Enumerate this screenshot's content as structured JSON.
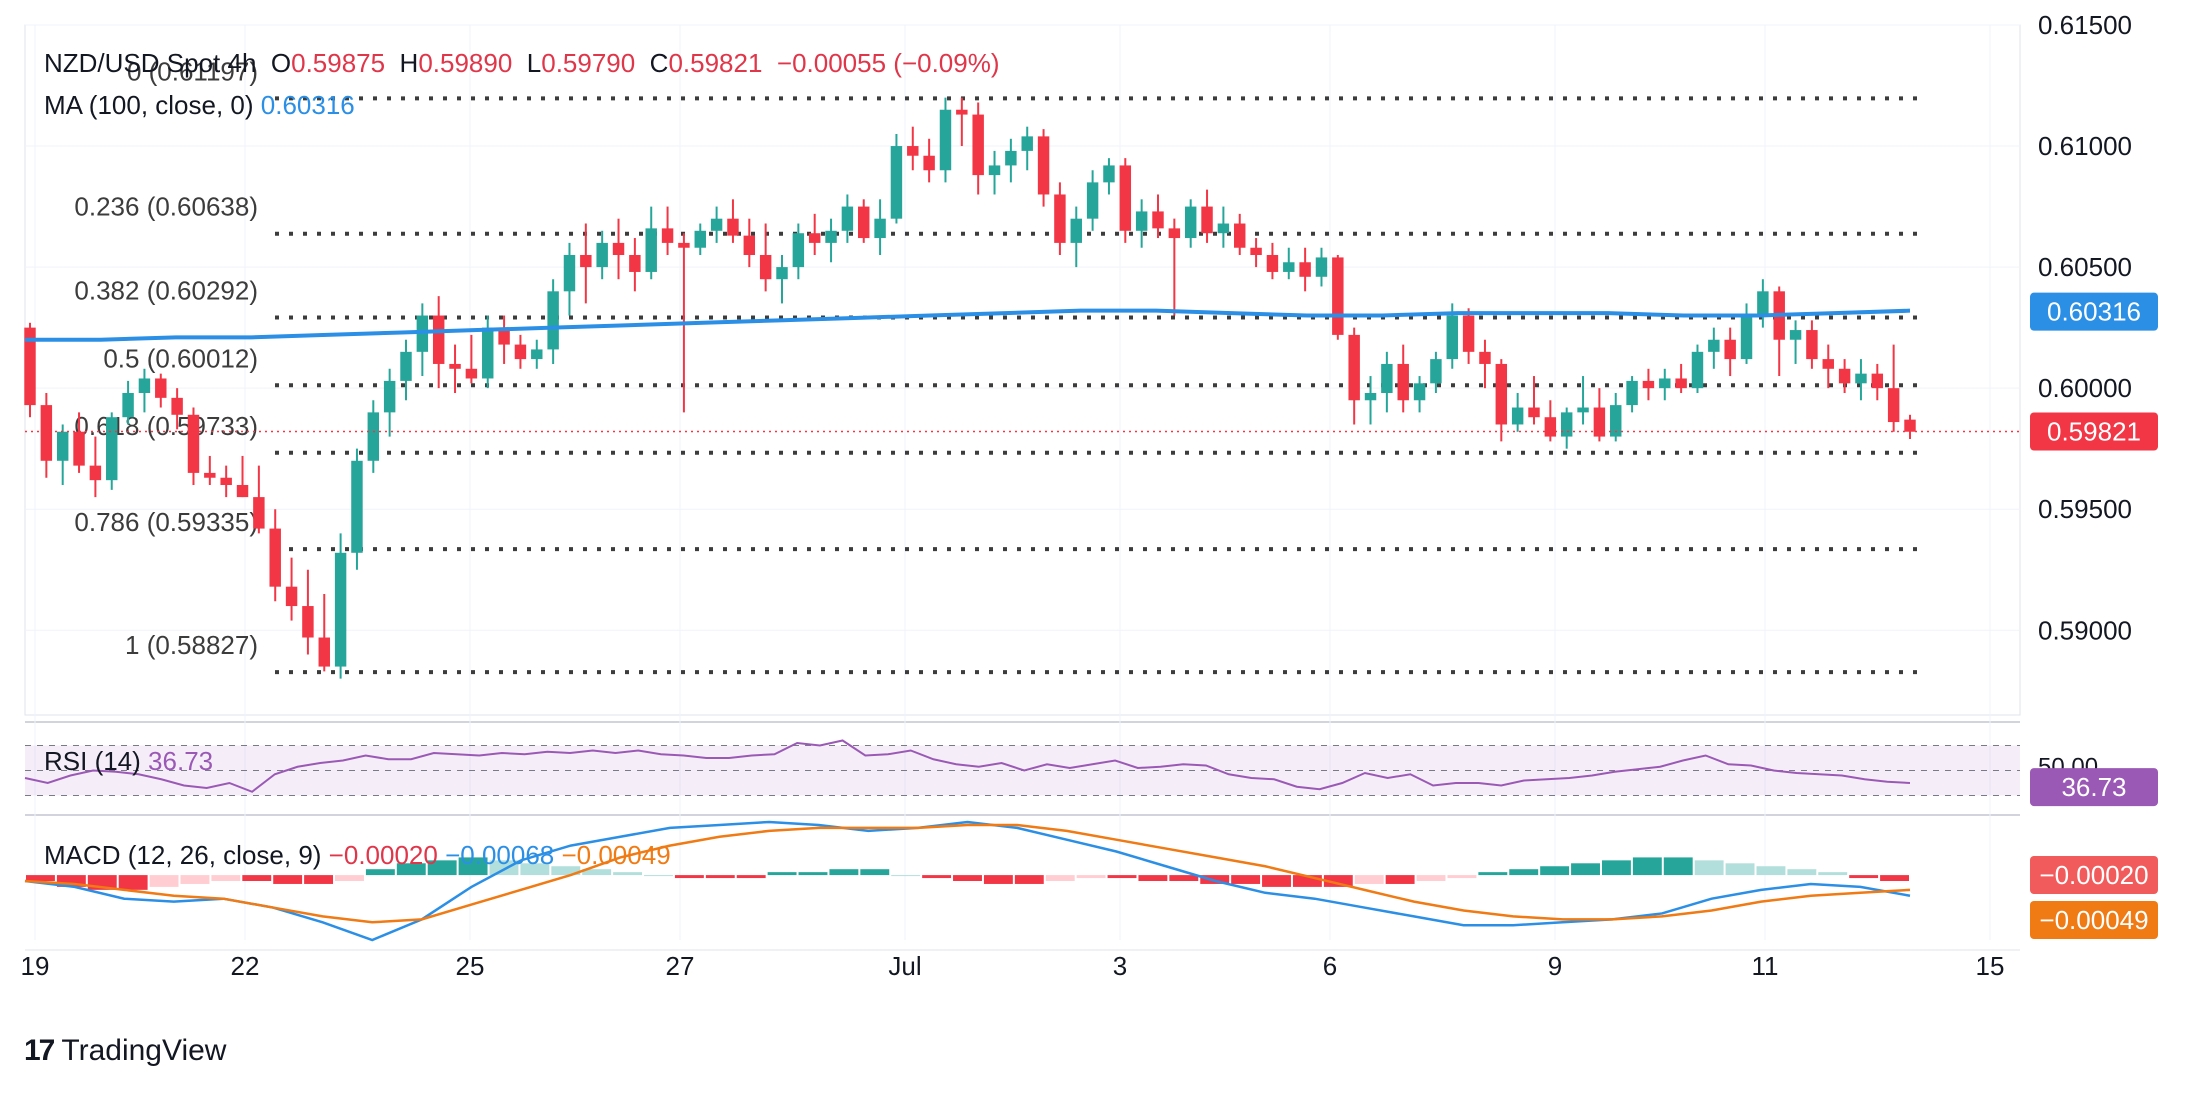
{
  "header": {
    "symbol": "NZD/USD Spot",
    "interval": "4h",
    "o_label": "O",
    "o_value": "0.59875",
    "h_label": "H",
    "h_value": "0.59890",
    "l_label": "L",
    "l_value": "0.59790",
    "c_label": "C",
    "c_value": "0.59821",
    "change": "−0.00055 (−0.09%)",
    "ma_label": "MA (100, close, 0)",
    "ma_value": "0.60316"
  },
  "rsi_header": {
    "label": "RSI (14)",
    "value": "36.73"
  },
  "macd_header": {
    "label": "MACD (12, 26, close, 9)",
    "hist": "−0.00020",
    "macd": "−0.00068",
    "signal": "−0.00049"
  },
  "branding": {
    "logo_text": "TradingView"
  },
  "colors": {
    "up": "#26a69a",
    "down": "#f23645",
    "ma": "#2b8fe6",
    "rsi": "#9b59b6",
    "macd_line": "#2b8fe6",
    "signal_line": "#f07a13",
    "hist_up_strong": "#26a69a",
    "hist_up_weak": "#b2dfdb",
    "hist_down_strong": "#f23645",
    "hist_down_weak": "#ffcdd2"
  },
  "chart_data": {
    "type": "candlestick",
    "y_range": [
      0.5865,
      0.615
    ],
    "y_ticks": [
      "0.59000",
      "0.59500",
      "0.60000",
      "0.60500",
      "0.61000",
      "0.61500"
    ],
    "x_ticks": [
      "19",
      "22",
      "25",
      "27",
      "Jul",
      "3",
      "6",
      "9",
      "11",
      "15"
    ],
    "last_price": "0.59821",
    "ma_last": "0.60316",
    "fibonacci": [
      {
        "label": "0 (0.61197)",
        "value": 0.61197
      },
      {
        "label": "0.236 (0.60638)",
        "value": 0.60638
      },
      {
        "label": "0.382 (0.60292)",
        "value": 0.60292
      },
      {
        "label": "0.5 (0.60012)",
        "value": 0.60012
      },
      {
        "label": "0.618 (0.59733)",
        "value": 0.59733
      },
      {
        "label": "0.786 (0.59335)",
        "value": 0.59335
      },
      {
        "label": "1 (0.58827)",
        "value": 0.58827
      }
    ],
    "candles": [
      [
        0.6025,
        0.6027,
        0.5988,
        0.5993
      ],
      [
        0.5993,
        0.5998,
        0.5963,
        0.597
      ],
      [
        0.597,
        0.5985,
        0.596,
        0.5982
      ],
      [
        0.5982,
        0.599,
        0.5965,
        0.5968
      ],
      [
        0.5968,
        0.598,
        0.5955,
        0.5962
      ],
      [
        0.5962,
        0.599,
        0.5958,
        0.5988
      ],
      [
        0.5988,
        0.6003,
        0.5985,
        0.5998
      ],
      [
        0.5998,
        0.6008,
        0.599,
        0.6004
      ],
      [
        0.6004,
        0.6006,
        0.5992,
        0.5996
      ],
      [
        0.5996,
        0.6,
        0.5983,
        0.5989
      ],
      [
        0.5989,
        0.5992,
        0.596,
        0.5965
      ],
      [
        0.5965,
        0.5972,
        0.596,
        0.5963
      ],
      [
        0.5963,
        0.5968,
        0.5955,
        0.596
      ],
      [
        0.596,
        0.5972,
        0.5955,
        0.5955
      ],
      [
        0.5955,
        0.5968,
        0.594,
        0.5942
      ],
      [
        0.5942,
        0.595,
        0.5912,
        0.5918
      ],
      [
        0.5918,
        0.593,
        0.5904,
        0.591
      ],
      [
        0.591,
        0.5925,
        0.589,
        0.5897
      ],
      [
        0.5897,
        0.5915,
        0.5883,
        0.5885
      ],
      [
        0.5885,
        0.594,
        0.588,
        0.5932
      ],
      [
        0.5932,
        0.5975,
        0.5925,
        0.597
      ],
      [
        0.597,
        0.5995,
        0.5965,
        0.599
      ],
      [
        0.599,
        0.6008,
        0.598,
        0.6003
      ],
      [
        0.6003,
        0.602,
        0.5995,
        0.6015
      ],
      [
        0.6015,
        0.6035,
        0.6005,
        0.603
      ],
      [
        0.603,
        0.6038,
        0.6,
        0.601
      ],
      [
        0.601,
        0.6018,
        0.5998,
        0.6008
      ],
      [
        0.6008,
        0.6022,
        0.6002,
        0.6004
      ],
      [
        0.6004,
        0.603,
        0.6,
        0.6025
      ],
      [
        0.6025,
        0.603,
        0.601,
        0.6018
      ],
      [
        0.6018,
        0.6022,
        0.6008,
        0.6012
      ],
      [
        0.6012,
        0.602,
        0.6008,
        0.6016
      ],
      [
        0.6016,
        0.6045,
        0.601,
        0.604
      ],
      [
        0.604,
        0.606,
        0.603,
        0.6055
      ],
      [
        0.6055,
        0.6068,
        0.6035,
        0.605
      ],
      [
        0.605,
        0.6065,
        0.6045,
        0.606
      ],
      [
        0.606,
        0.607,
        0.6045,
        0.6055
      ],
      [
        0.6055,
        0.6062,
        0.604,
        0.6048
      ],
      [
        0.6048,
        0.6075,
        0.6045,
        0.6066
      ],
      [
        0.6066,
        0.6075,
        0.6055,
        0.606
      ],
      [
        0.606,
        0.6064,
        0.599,
        0.6058
      ],
      [
        0.6058,
        0.6068,
        0.6055,
        0.6065
      ],
      [
        0.6065,
        0.6075,
        0.606,
        0.607
      ],
      [
        0.607,
        0.6078,
        0.606,
        0.6063
      ],
      [
        0.6063,
        0.607,
        0.605,
        0.6055
      ],
      [
        0.6055,
        0.6068,
        0.604,
        0.6045
      ],
      [
        0.6045,
        0.6055,
        0.6035,
        0.605
      ],
      [
        0.605,
        0.6068,
        0.6045,
        0.6064
      ],
      [
        0.6064,
        0.6072,
        0.6055,
        0.606
      ],
      [
        0.606,
        0.607,
        0.6052,
        0.6065
      ],
      [
        0.6065,
        0.608,
        0.606,
        0.6075
      ],
      [
        0.6075,
        0.6078,
        0.606,
        0.6062
      ],
      [
        0.6062,
        0.6078,
        0.6055,
        0.607
      ],
      [
        0.607,
        0.6105,
        0.6068,
        0.61
      ],
      [
        0.61,
        0.6108,
        0.609,
        0.6096
      ],
      [
        0.6096,
        0.6103,
        0.6085,
        0.609
      ],
      [
        0.609,
        0.612,
        0.6085,
        0.6115
      ],
      [
        0.6115,
        0.612,
        0.61,
        0.6113
      ],
      [
        0.6113,
        0.6118,
        0.608,
        0.6088
      ],
      [
        0.6088,
        0.6098,
        0.608,
        0.6092
      ],
      [
        0.6092,
        0.6103,
        0.6085,
        0.6098
      ],
      [
        0.6098,
        0.6108,
        0.609,
        0.6104
      ],
      [
        0.6104,
        0.6107,
        0.6075,
        0.608
      ],
      [
        0.608,
        0.6085,
        0.6055,
        0.606
      ],
      [
        0.606,
        0.6075,
        0.605,
        0.607
      ],
      [
        0.607,
        0.609,
        0.6065,
        0.6085
      ],
      [
        0.6085,
        0.6095,
        0.608,
        0.6092
      ],
      [
        0.6092,
        0.6095,
        0.606,
        0.6065
      ],
      [
        0.6065,
        0.6078,
        0.6058,
        0.6073
      ],
      [
        0.6073,
        0.608,
        0.6062,
        0.6066
      ],
      [
        0.6066,
        0.607,
        0.603,
        0.6062
      ],
      [
        0.6062,
        0.6078,
        0.6058,
        0.6075
      ],
      [
        0.6075,
        0.6082,
        0.606,
        0.6064
      ],
      [
        0.6064,
        0.6075,
        0.6058,
        0.6068
      ],
      [
        0.6068,
        0.6072,
        0.6055,
        0.6058
      ],
      [
        0.6058,
        0.6062,
        0.605,
        0.6055
      ],
      [
        0.6055,
        0.606,
        0.6045,
        0.6048
      ],
      [
        0.6048,
        0.6058,
        0.6045,
        0.6052
      ],
      [
        0.6052,
        0.6058,
        0.604,
        0.6046
      ],
      [
        0.6046,
        0.6058,
        0.6042,
        0.6054
      ],
      [
        0.6054,
        0.6055,
        0.602,
        0.6022
      ],
      [
        0.6022,
        0.6025,
        0.5985,
        0.5995
      ],
      [
        0.5995,
        0.6005,
        0.5985,
        0.5998
      ],
      [
        0.5998,
        0.6015,
        0.599,
        0.601
      ],
      [
        0.601,
        0.6018,
        0.599,
        0.5995
      ],
      [
        0.5995,
        0.6005,
        0.599,
        0.6002
      ],
      [
        0.6002,
        0.6015,
        0.5998,
        0.6012
      ],
      [
        0.6012,
        0.6035,
        0.6008,
        0.603
      ],
      [
        0.603,
        0.6033,
        0.601,
        0.6015
      ],
      [
        0.6015,
        0.602,
        0.6,
        0.601
      ],
      [
        0.601,
        0.6012,
        0.5978,
        0.5985
      ],
      [
        0.5985,
        0.5998,
        0.5982,
        0.5992
      ],
      [
        0.5992,
        0.6005,
        0.5985,
        0.5988
      ],
      [
        0.5988,
        0.5995,
        0.5978,
        0.598
      ],
      [
        0.598,
        0.5992,
        0.5975,
        0.599
      ],
      [
        0.599,
        0.6005,
        0.5985,
        0.5992
      ],
      [
        0.5992,
        0.6,
        0.5978,
        0.598
      ],
      [
        0.598,
        0.5998,
        0.5978,
        0.5993
      ],
      [
        0.5993,
        0.6005,
        0.599,
        0.6003
      ],
      [
        0.6003,
        0.6008,
        0.5995,
        0.6
      ],
      [
        0.6,
        0.6008,
        0.5995,
        0.6004
      ],
      [
        0.6004,
        0.601,
        0.5998,
        0.6
      ],
      [
        0.6,
        0.6018,
        0.5998,
        0.6015
      ],
      [
        0.6015,
        0.6025,
        0.6008,
        0.602
      ],
      [
        0.602,
        0.6025,
        0.6005,
        0.6012
      ],
      [
        0.6012,
        0.6035,
        0.601,
        0.603
      ],
      [
        0.603,
        0.6045,
        0.6025,
        0.604
      ],
      [
        0.604,
        0.6042,
        0.6005,
        0.602
      ],
      [
        0.602,
        0.6028,
        0.601,
        0.6024
      ],
      [
        0.6024,
        0.6028,
        0.6008,
        0.6012
      ],
      [
        0.6012,
        0.6018,
        0.6,
        0.6008
      ],
      [
        0.6008,
        0.6012,
        0.5998,
        0.6002
      ],
      [
        0.6002,
        0.6012,
        0.5995,
        0.6006
      ],
      [
        0.6006,
        0.601,
        0.5995,
        0.6
      ],
      [
        0.6,
        0.6018,
        0.5982,
        0.5986
      ],
      [
        0.5987,
        0.5989,
        0.5979,
        0.5982
      ]
    ],
    "ma_values": [
      0.602,
      0.602,
      0.6021,
      0.6021,
      0.6022,
      0.6023,
      0.6024,
      0.6025,
      0.6026,
      0.6027,
      0.6028,
      0.6029,
      0.603,
      0.6031,
      0.6032,
      0.6032,
      0.6031,
      0.603,
      0.603,
      0.6031,
      0.6031,
      0.6031,
      0.603,
      0.603,
      0.6031,
      0.6032
    ],
    "rsi": {
      "range": [
        20,
        80
      ],
      "band": [
        30,
        70
      ],
      "mid_label": "50.00",
      "values": [
        44,
        40,
        46,
        50,
        49,
        47,
        43,
        38,
        36,
        40,
        33,
        47,
        53,
        56,
        58,
        62,
        59,
        59,
        64,
        63,
        62,
        64,
        63,
        65,
        64,
        66,
        64,
        66,
        63,
        62,
        60,
        60,
        62,
        63,
        72,
        70,
        74,
        62,
        63,
        66,
        59,
        55,
        53,
        56,
        50,
        55,
        52,
        55,
        58,
        52,
        53,
        55,
        54,
        47,
        44,
        43,
        37,
        35,
        40,
        48,
        44,
        47,
        38,
        40,
        40,
        38,
        42,
        43,
        44,
        46,
        49,
        51,
        53,
        58,
        62,
        55,
        54,
        50,
        48,
        47,
        46,
        43,
        41,
        40
      ]
    },
    "macd": {
      "range": [
        -0.0022,
        0.0018
      ],
      "macd_values": [
        -0.0002,
        -0.0004,
        -0.0008,
        -0.0009,
        -0.0008,
        -0.0011,
        -0.0016,
        -0.0022,
        -0.0015,
        -0.0004,
        0.0005,
        0.001,
        0.0013,
        0.0016,
        0.0017,
        0.0018,
        0.0017,
        0.0015,
        0.0016,
        0.0018,
        0.0016,
        0.0012,
        0.0008,
        0.0003,
        -0.0002,
        -0.0006,
        -0.0008,
        -0.0011,
        -0.0014,
        -0.0017,
        -0.0017,
        -0.0016,
        -0.0015,
        -0.0013,
        -0.0008,
        -0.0005,
        -0.0003,
        -0.0004,
        -0.0007
      ],
      "signal_values": [
        -0.0002,
        -0.0003,
        -0.0005,
        -0.0007,
        -0.0008,
        -0.0011,
        -0.0014,
        -0.0016,
        -0.0015,
        -0.001,
        -0.0005,
        0.0,
        0.0006,
        0.001,
        0.0013,
        0.0015,
        0.0016,
        0.0016,
        0.0016,
        0.0017,
        0.0017,
        0.0015,
        0.0012,
        0.0009,
        0.0006,
        0.0003,
        -0.0001,
        -0.0005,
        -0.0009,
        -0.0012,
        -0.0014,
        -0.0015,
        -0.0015,
        -0.0014,
        -0.0012,
        -0.0009,
        -0.0007,
        -0.0006,
        -0.0005
      ],
      "hist_values": [
        -0.0002,
        -0.0004,
        -0.0005,
        -0.0005,
        -0.0004,
        -0.0003,
        -0.0002,
        -0.0002,
        -0.0003,
        -0.0003,
        -0.0002,
        0.0002,
        0.0004,
        0.0005,
        0.0006,
        0.0005,
        0.0004,
        0.0003,
        0.0002,
        0.0001,
        0.0,
        -0.0001,
        -0.0001,
        -0.0001,
        0.0001,
        0.0001,
        0.0002,
        0.0002,
        0.0,
        -0.0001,
        -0.0002,
        -0.0003,
        -0.0003,
        -0.0002,
        -0.0001,
        -0.0001,
        -0.0002,
        -0.0002,
        -0.0003,
        -0.0003,
        -0.0004,
        -0.0004,
        -0.0004,
        -0.0003,
        -0.0003,
        -0.0002,
        -0.0001,
        0.0001,
        0.0002,
        0.0003,
        0.0004,
        0.0005,
        0.0006,
        0.0006,
        0.0005,
        0.0004,
        0.0003,
        0.0002,
        0.0001,
        -0.0001,
        -0.0002
      ]
    }
  }
}
